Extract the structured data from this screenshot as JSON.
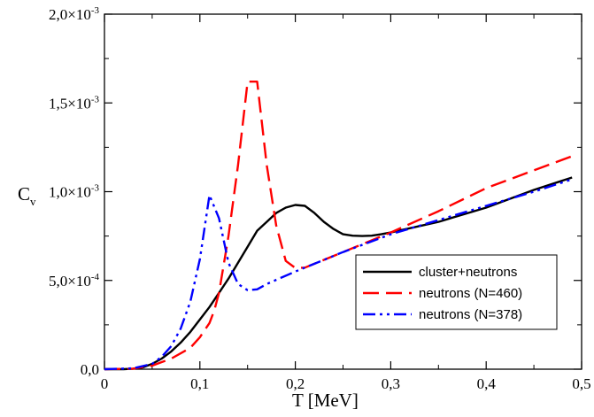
{
  "chart_data": {
    "type": "line",
    "xlabel": "T  [MeV]",
    "ylabel": {
      "main": "C",
      "sub": "v"
    },
    "xlim": [
      0,
      0.5
    ],
    "ylim": [
      0,
      0.002
    ],
    "grid": false,
    "legend_position": "lower-right",
    "x_ticks": [
      {
        "value": 0.0,
        "label": "0"
      },
      {
        "value": 0.1,
        "label": "0,1"
      },
      {
        "value": 0.2,
        "label": "0,2"
      },
      {
        "value": 0.3,
        "label": "0,3"
      },
      {
        "value": 0.4,
        "label": "0,4"
      },
      {
        "value": 0.5,
        "label": "0,5"
      }
    ],
    "y_ticks": [
      {
        "value": 0.0,
        "mantissa": "0,0",
        "exp": ""
      },
      {
        "value": 0.0005,
        "mantissa": "5,0×10",
        "exp": "-4"
      },
      {
        "value": 0.001,
        "mantissa": "1,0×10",
        "exp": "-3"
      },
      {
        "value": 0.0015,
        "mantissa": "1,5×10",
        "exp": "-3"
      },
      {
        "value": 0.002,
        "mantissa": "2,0×10",
        "exp": "-3"
      }
    ],
    "series": [
      {
        "name": "cluster+neutrons",
        "color": "#000000",
        "dash": "solid",
        "points": [
          [
            0.0,
            0.0
          ],
          [
            0.02,
            0.0
          ],
          [
            0.03,
            3e-06
          ],
          [
            0.04,
            1e-05
          ],
          [
            0.05,
            3e-05
          ],
          [
            0.06,
            6e-05
          ],
          [
            0.07,
            0.0001
          ],
          [
            0.08,
            0.00015
          ],
          [
            0.09,
            0.00021
          ],
          [
            0.1,
            0.00028
          ],
          [
            0.11,
            0.00035
          ],
          [
            0.12,
            0.00043
          ],
          [
            0.13,
            0.00051
          ],
          [
            0.14,
            0.0006
          ],
          [
            0.15,
            0.00069
          ],
          [
            0.16,
            0.00078
          ],
          [
            0.17,
            0.00083
          ],
          [
            0.18,
            0.00088
          ],
          [
            0.19,
            0.00091
          ],
          [
            0.2,
            0.000925
          ],
          [
            0.21,
            0.00092
          ],
          [
            0.22,
            0.00088
          ],
          [
            0.23,
            0.00083
          ],
          [
            0.24,
            0.00079
          ],
          [
            0.25,
            0.00076
          ],
          [
            0.26,
            0.000752
          ],
          [
            0.27,
            0.00075
          ],
          [
            0.28,
            0.000752
          ],
          [
            0.29,
            0.00076
          ],
          [
            0.3,
            0.00077
          ],
          [
            0.35,
            0.00083
          ],
          [
            0.4,
            0.00091
          ],
          [
            0.45,
            0.00101
          ],
          [
            0.49,
            0.00108
          ]
        ]
      },
      {
        "name": "neutrons (N=460)",
        "color": "#ff0000",
        "dash": "long-dash",
        "points": [
          [
            0.0,
            0.0
          ],
          [
            0.03,
            3e-06
          ],
          [
            0.05,
            2e-05
          ],
          [
            0.07,
            6e-05
          ],
          [
            0.09,
            0.00012
          ],
          [
            0.1,
            0.00018
          ],
          [
            0.11,
            0.00026
          ],
          [
            0.115,
            0.00033
          ],
          [
            0.12,
            0.00043
          ],
          [
            0.13,
            0.00075
          ],
          [
            0.14,
            0.00115
          ],
          [
            0.15,
            0.00162
          ],
          [
            0.16,
            0.00162
          ],
          [
            0.17,
            0.00115
          ],
          [
            0.18,
            0.00081
          ],
          [
            0.19,
            0.00061
          ],
          [
            0.2,
            0.00057
          ],
          [
            0.21,
            0.000572
          ],
          [
            0.25,
            0.00066
          ],
          [
            0.3,
            0.00077
          ],
          [
            0.35,
            0.00089
          ],
          [
            0.4,
            0.00102
          ],
          [
            0.45,
            0.00112
          ],
          [
            0.49,
            0.0012
          ]
        ]
      },
      {
        "name": "neutrons (N=378)",
        "color": "#0000ff",
        "dash": "dash-dot-dot",
        "points": [
          [
            0.0,
            0.0
          ],
          [
            0.03,
            5e-06
          ],
          [
            0.05,
            3e-05
          ],
          [
            0.06,
            7e-05
          ],
          [
            0.07,
            0.00013
          ],
          [
            0.08,
            0.00023
          ],
          [
            0.09,
            0.00038
          ],
          [
            0.1,
            0.00062
          ],
          [
            0.11,
            0.00098
          ],
          [
            0.12,
            0.00085
          ],
          [
            0.13,
            0.0006
          ],
          [
            0.14,
            0.00048
          ],
          [
            0.15,
            0.000445
          ],
          [
            0.16,
            0.00045
          ],
          [
            0.17,
            0.00048
          ],
          [
            0.2,
            0.00055
          ],
          [
            0.25,
            0.00066
          ],
          [
            0.3,
            0.00076
          ],
          [
            0.35,
            0.00084
          ],
          [
            0.4,
            0.00092
          ],
          [
            0.45,
            0.001
          ],
          [
            0.49,
            0.00107
          ]
        ]
      }
    ]
  }
}
